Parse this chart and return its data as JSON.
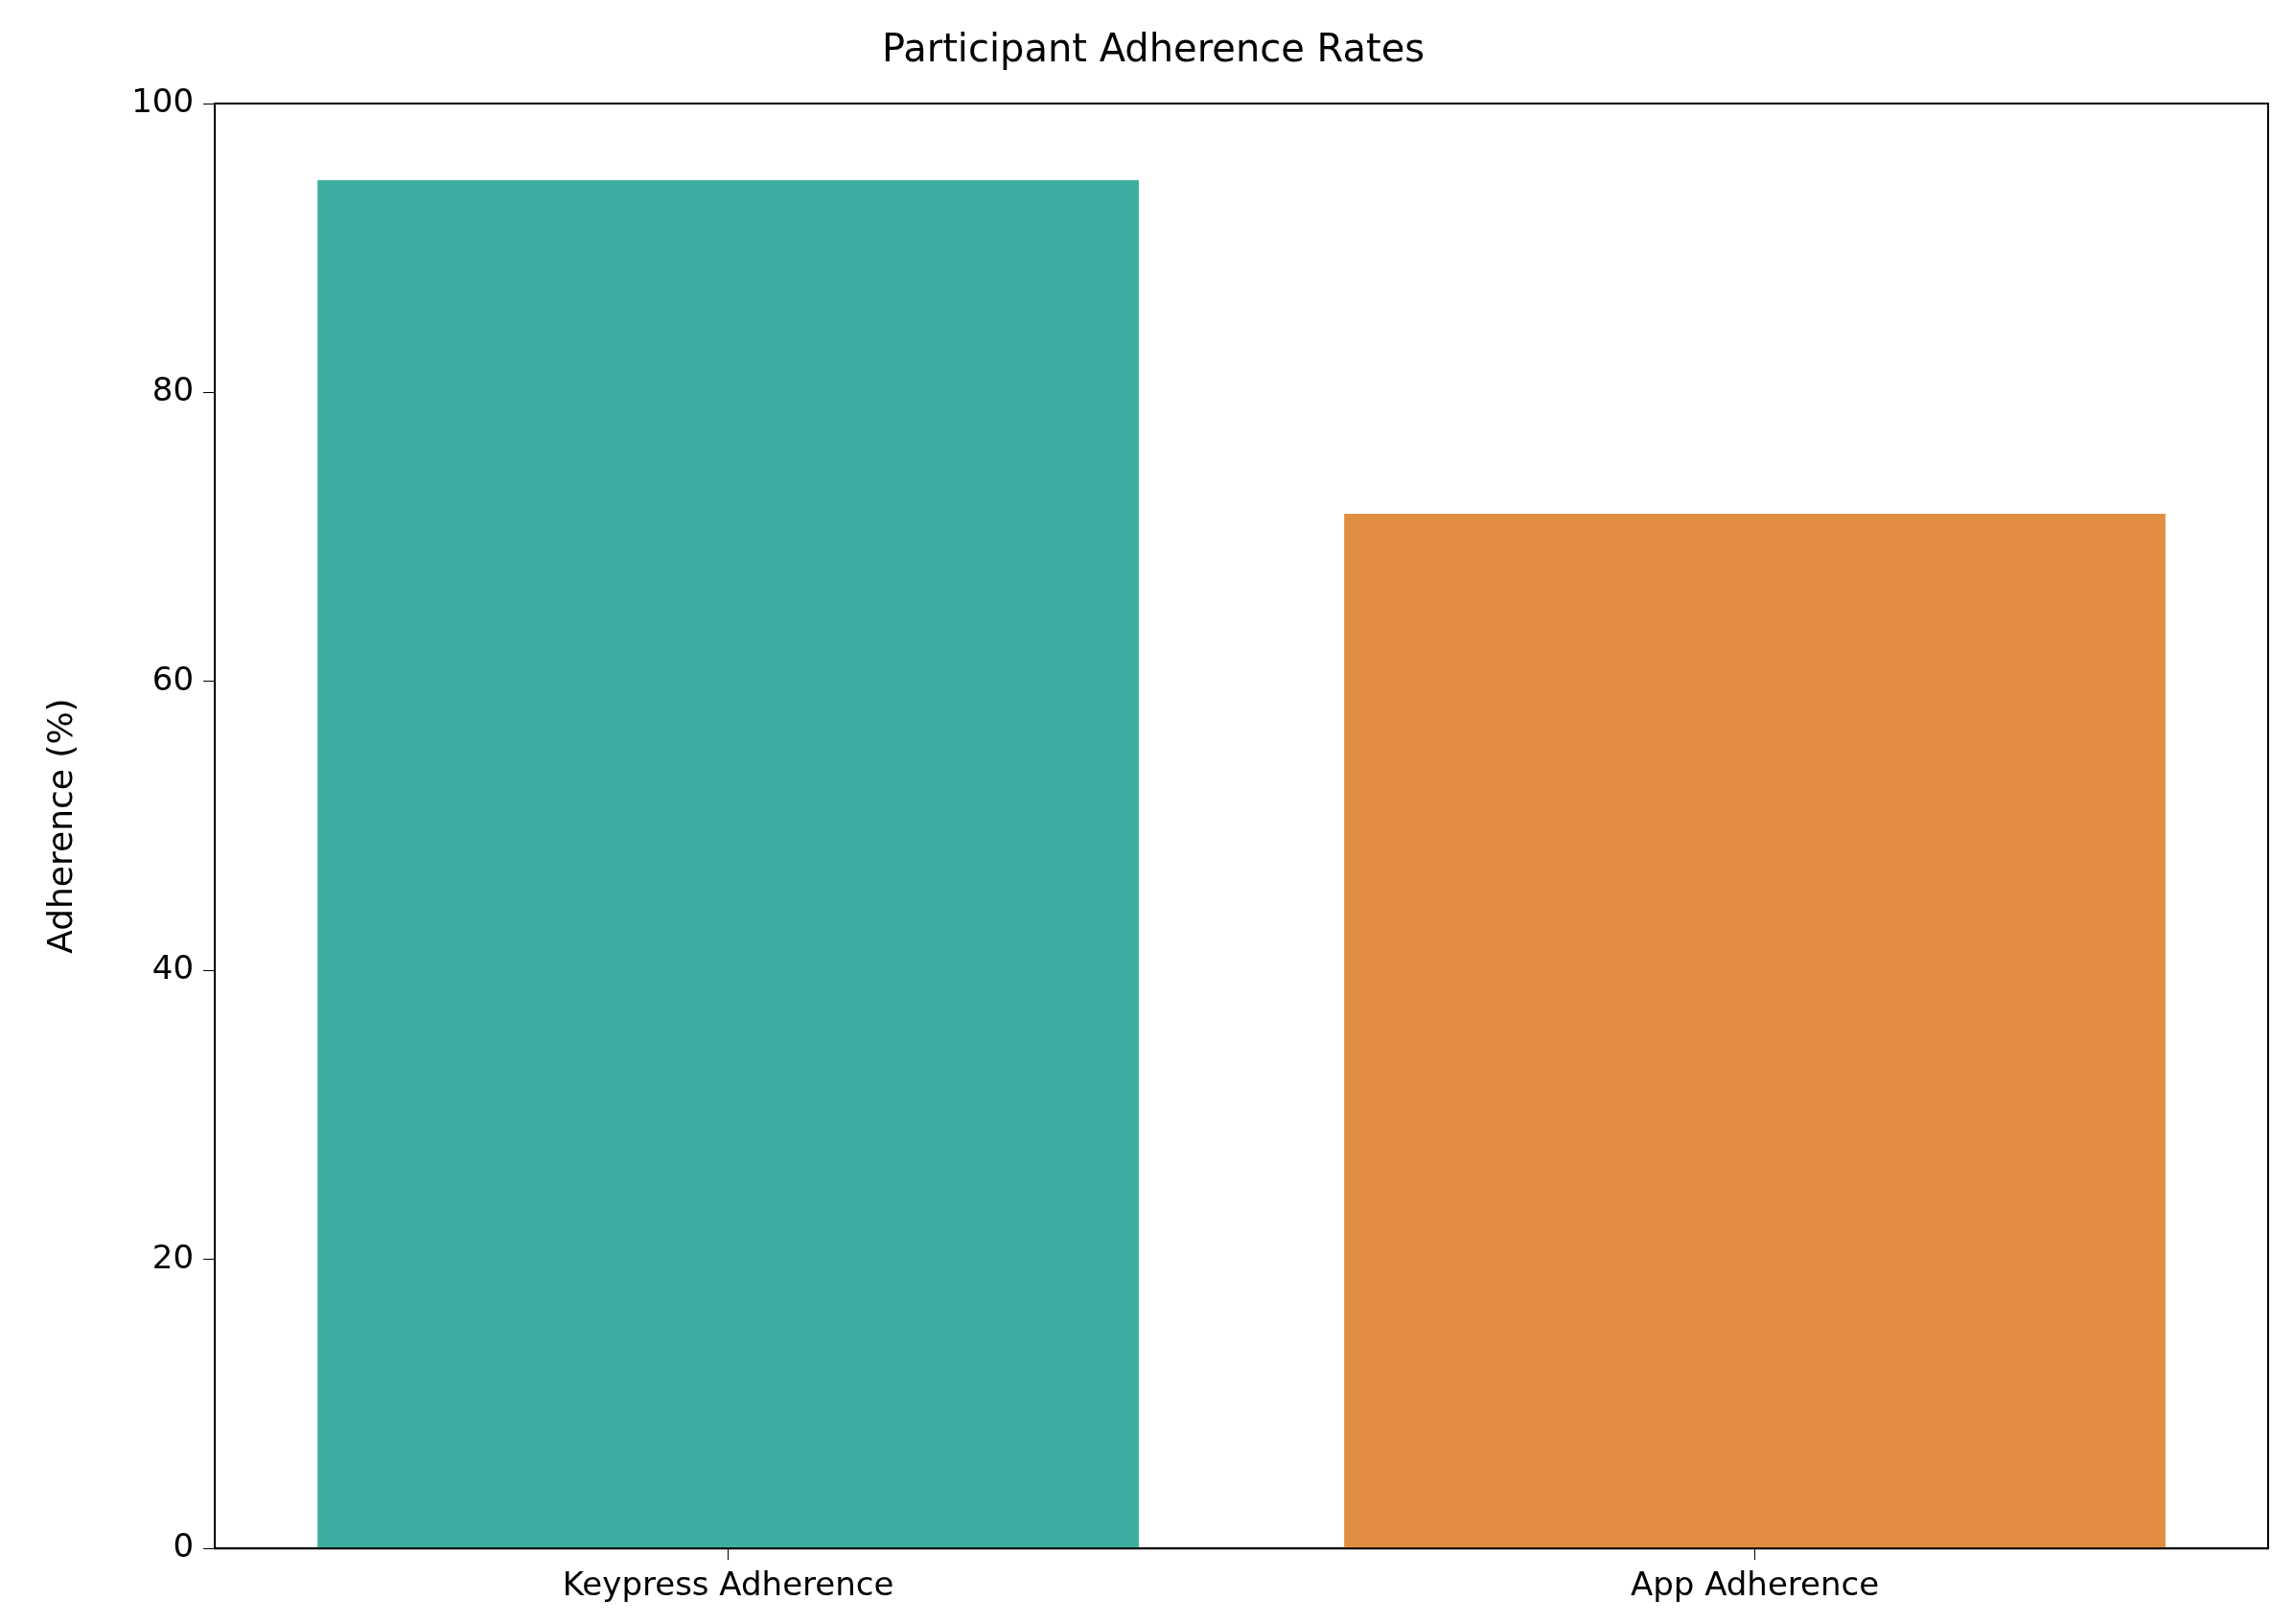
{
  "chart_data": {
    "type": "bar",
    "title": "Participant Adherence Rates",
    "ylabel": "Adherence (%)",
    "categories": [
      "Keypress Adherence",
      "App Adherence"
    ],
    "values": [
      94.7,
      71.6
    ],
    "colors": [
      "#3cae9f",
      "#e28e42"
    ],
    "ylim": [
      0,
      100
    ],
    "yticks": [
      0,
      20,
      40,
      60,
      80,
      100
    ],
    "grid": false,
    "legend": false
  }
}
